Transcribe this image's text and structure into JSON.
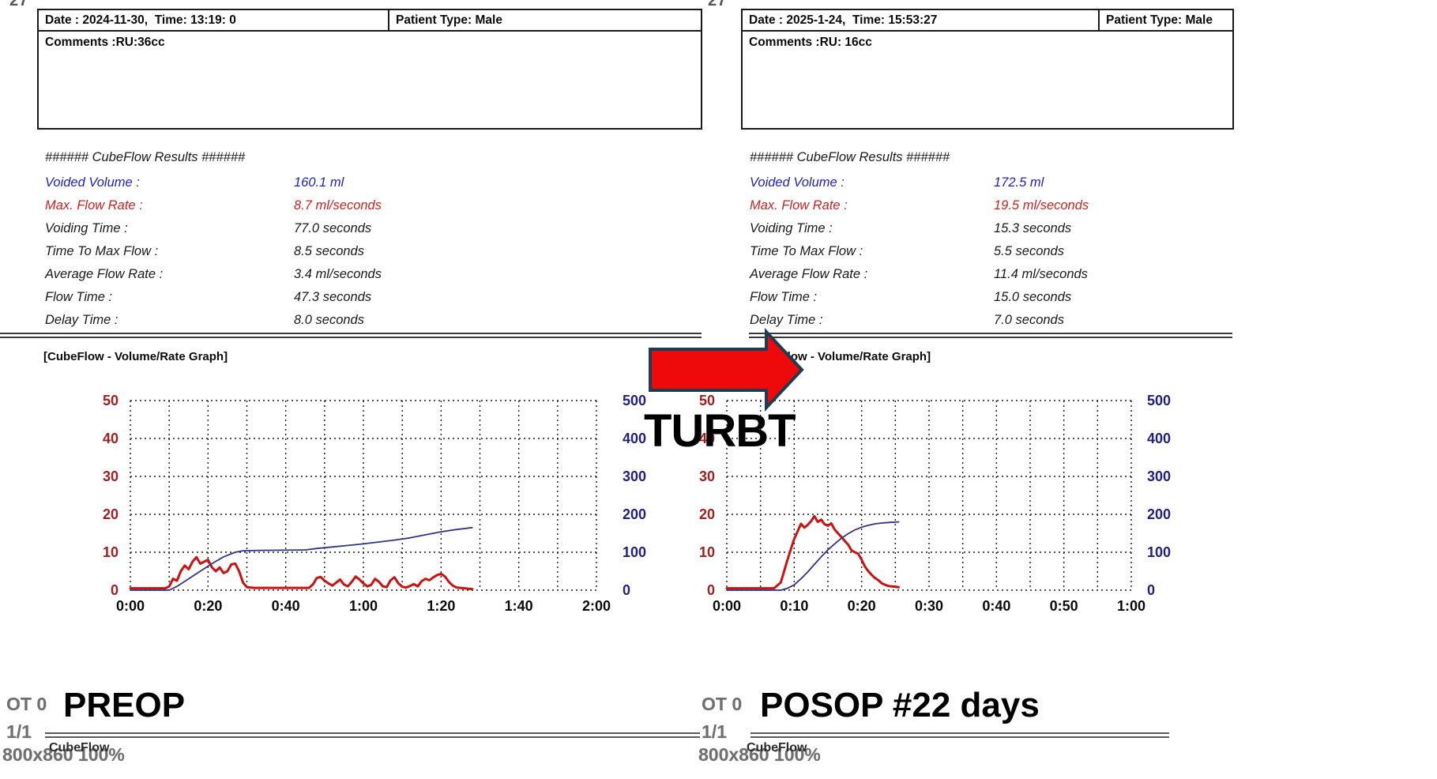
{
  "annotations": {
    "arrow_label": "TURBT",
    "left_caption": "PREOP",
    "right_caption": "POSOP #22 days",
    "arrow_fill": "#ee0a0a",
    "arrow_outline": "#1d3e52"
  },
  "panels": [
    {
      "id": "preop",
      "page_corner": "27",
      "header": {
        "date_line": "Date : 2024-11-30,  Time: 13:19: 0",
        "patient_type": "Patient Type: Male",
        "comments": "Comments :RU:36cc"
      },
      "results": {
        "title": "###### CubeFlow Results ######",
        "rows": [
          {
            "label": "Voided Volume :",
            "value": "160.1 ml",
            "color": "#2222bb"
          },
          {
            "label": "Max. Flow Rate :",
            "value": "8.7 ml/seconds",
            "color": "#cc2222"
          },
          {
            "label": "Voiding Time :",
            "value": "77.0 seconds",
            "color": "#1a1a1a"
          },
          {
            "label": "Time To Max Flow :",
            "value": "8.5 seconds",
            "color": "#1a1a1a"
          },
          {
            "label": "Average Flow Rate :",
            "value": "3.4 ml/seconds",
            "color": "#1a1a1a"
          },
          {
            "label": "Flow Time :",
            "value": "47.3 seconds",
            "color": "#1a1a1a"
          },
          {
            "label": "Delay Time :",
            "value": "8.0 seconds",
            "color": "#1a1a1a"
          }
        ]
      },
      "graph_title": "[CubeFlow - Volume/Rate Graph]",
      "status": {
        "ot": "OT 0",
        "page": "1/1",
        "zoom": "800x860 100%",
        "brand": "CubeFlow"
      }
    },
    {
      "id": "posop",
      "page_corner": "27",
      "header": {
        "date_line": "Date : 2025-1-24,  Time: 15:53:27",
        "patient_type": "Patient Type: Male",
        "comments": "Comments :RU: 16cc"
      },
      "results": {
        "title": "###### CubeFlow Results ######",
        "rows": [
          {
            "label": "Voided Volume :",
            "value": "172.5 ml",
            "color": "#2222bb"
          },
          {
            "label": "Max. Flow Rate :",
            "value": "19.5 ml/seconds",
            "color": "#cc2222"
          },
          {
            "label": "Voiding Time :",
            "value": "15.3 seconds",
            "color": "#1a1a1a"
          },
          {
            "label": "Time To Max Flow :",
            "value": "5.5 seconds",
            "color": "#1a1a1a"
          },
          {
            "label": "Average Flow Rate :",
            "value": "11.4 ml/seconds",
            "color": "#1a1a1a"
          },
          {
            "label": "Flow Time :",
            "value": "15.0 seconds",
            "color": "#1a1a1a"
          },
          {
            "label": "Delay Time :",
            "value": "7.0 seconds",
            "color": "#1a1a1a"
          }
        ]
      },
      "graph_title": "[CubeFlow - Volume/Rate Graph]",
      "status": {
        "ot": "OT 0",
        "page": "1/1",
        "zoom": "800x860 100%",
        "brand": "CubeFlow"
      }
    }
  ],
  "chart_data": [
    {
      "type": "line",
      "title": "[CubeFlow - Volume/Rate Graph] (PREOP)",
      "x_ticks": [
        "0:00",
        "0:20",
        "0:40",
        "1:00",
        "1:20",
        "1:40",
        "2:00"
      ],
      "x_range_seconds": [
        0,
        120
      ],
      "flow_axis": {
        "ticks": [
          50,
          40,
          30,
          20,
          10,
          0
        ],
        "range": [
          0,
          50
        ],
        "color": "#a02020"
      },
      "volume_axis": {
        "ticks": [
          500,
          400,
          300,
          200,
          100,
          0
        ],
        "range": [
          0,
          500
        ],
        "color": "#20207f"
      },
      "grid": {
        "cols": 12,
        "rows": 5,
        "style": "dashed"
      },
      "series": [
        {
          "name": "Flow Rate (ml/s)",
          "axis": "flow",
          "color": "#cc1111",
          "width": 3,
          "points": [
            [
              0,
              0.5
            ],
            [
              9,
              0.5
            ],
            [
              10,
              1
            ],
            [
              11,
              3
            ],
            [
              12,
              2.5
            ],
            [
              13,
              5
            ],
            [
              14,
              6.5
            ],
            [
              15,
              5.5
            ],
            [
              16,
              7.5
            ],
            [
              17,
              8.7
            ],
            [
              18,
              7
            ],
            [
              19,
              7.5
            ],
            [
              20,
              8
            ],
            [
              21,
              6
            ],
            [
              22,
              5
            ],
            [
              23,
              6
            ],
            [
              24,
              4.5
            ],
            [
              25,
              5
            ],
            [
              26,
              6.8
            ],
            [
              27,
              7
            ],
            [
              28,
              5
            ],
            [
              29,
              2
            ],
            [
              30,
              0.8
            ],
            [
              32,
              0.6
            ],
            [
              46,
              0.6
            ],
            [
              47,
              1.5
            ],
            [
              48,
              3.2
            ],
            [
              49,
              3.5
            ],
            [
              50,
              2.5
            ],
            [
              51,
              1.8
            ],
            [
              52,
              1.2
            ],
            [
              53,
              2
            ],
            [
              54,
              2.8
            ],
            [
              55,
              1.5
            ],
            [
              56,
              1
            ],
            [
              57,
              2.2
            ],
            [
              58,
              3.6
            ],
            [
              59,
              2.8
            ],
            [
              60,
              1.8
            ],
            [
              61,
              1
            ],
            [
              62,
              1.4
            ],
            [
              63,
              3
            ],
            [
              64,
              2.2
            ],
            [
              65,
              1
            ],
            [
              66,
              0.8
            ],
            [
              67,
              2.6
            ],
            [
              68,
              3.4
            ],
            [
              69,
              1.8
            ],
            [
              70,
              0.9
            ],
            [
              71,
              0.7
            ],
            [
              72,
              1.1
            ],
            [
              73,
              1.6
            ],
            [
              74,
              1
            ],
            [
              75,
              2.4
            ],
            [
              76,
              3
            ],
            [
              77,
              2.6
            ],
            [
              78,
              3.4
            ],
            [
              79,
              4
            ],
            [
              80,
              4.3
            ],
            [
              81,
              3.6
            ],
            [
              82,
              2.2
            ],
            [
              83,
              1.2
            ],
            [
              84,
              0.7
            ],
            [
              86,
              0.5
            ],
            [
              88,
              0.3
            ]
          ]
        },
        {
          "name": "Voided Volume (ml)",
          "axis": "volume",
          "color": "#333388",
          "width": 1.8,
          "points": [
            [
              0,
              0
            ],
            [
              10,
              0
            ],
            [
              12,
              10
            ],
            [
              15,
              30
            ],
            [
              18,
              50
            ],
            [
              21,
              70
            ],
            [
              24,
              88
            ],
            [
              27,
              100
            ],
            [
              29,
              104
            ],
            [
              33,
              105
            ],
            [
              45,
              106
            ],
            [
              48,
              110
            ],
            [
              52,
              114
            ],
            [
              56,
              118
            ],
            [
              60,
              122
            ],
            [
              64,
              127
            ],
            [
              68,
              132
            ],
            [
              72,
              138
            ],
            [
              76,
              146
            ],
            [
              80,
              154
            ],
            [
              84,
              160
            ],
            [
              88,
              165
            ]
          ]
        }
      ]
    },
    {
      "type": "line",
      "title": "[CubeFlow - Volume/Rate Graph] (POSOP)",
      "x_ticks": [
        "0:00",
        "0:10",
        "0:20",
        "0:30",
        "0:40",
        "0:50",
        "1:00"
      ],
      "x_range_seconds": [
        0,
        60
      ],
      "flow_axis": {
        "ticks": [
          50,
          40,
          30,
          20,
          10,
          0
        ],
        "range": [
          0,
          50
        ],
        "color": "#a02020"
      },
      "volume_axis": {
        "ticks": [
          500,
          400,
          300,
          200,
          100,
          0
        ],
        "range": [
          0,
          500
        ],
        "color": "#20207f"
      },
      "grid": {
        "cols": 12,
        "rows": 5,
        "style": "dashed"
      },
      "series": [
        {
          "name": "Flow Rate (ml/s)",
          "axis": "flow",
          "color": "#cc1111",
          "width": 3,
          "points": [
            [
              0,
              0.5
            ],
            [
              7,
              0.5
            ],
            [
              8,
              2
            ],
            [
              9,
              8
            ],
            [
              10,
              13.5
            ],
            [
              10.5,
              15.5
            ],
            [
              11,
              17.5
            ],
            [
              11.5,
              16.5
            ],
            [
              12,
              17.2
            ],
            [
              12.5,
              18.2
            ],
            [
              13,
              19.5
            ],
            [
              13.5,
              18
            ],
            [
              14,
              18.6
            ],
            [
              14.5,
              17.4
            ],
            [
              15,
              17
            ],
            [
              15.5,
              17.6
            ],
            [
              16,
              16
            ],
            [
              16.5,
              15
            ],
            [
              17,
              14
            ],
            [
              17.5,
              13
            ],
            [
              18,
              12
            ],
            [
              18.5,
              10.5
            ],
            [
              19,
              10
            ],
            [
              19.5,
              9.6
            ],
            [
              20,
              8
            ],
            [
              20.5,
              6.2
            ],
            [
              21,
              5
            ],
            [
              21.5,
              4
            ],
            [
              22,
              3.2
            ],
            [
              22.5,
              2.6
            ],
            [
              23,
              1.8
            ],
            [
              23.5,
              1.4
            ],
            [
              24,
              1.1
            ],
            [
              25,
              0.9
            ],
            [
              25.5,
              0.8
            ]
          ]
        },
        {
          "name": "Voided Volume (ml)",
          "axis": "volume",
          "color": "#333388",
          "width": 1.8,
          "points": [
            [
              0,
              0
            ],
            [
              8,
              0
            ],
            [
              9,
              5
            ],
            [
              10,
              14
            ],
            [
              11,
              30
            ],
            [
              12,
              48
            ],
            [
              13,
              68
            ],
            [
              14,
              88
            ],
            [
              15,
              106
            ],
            [
              16,
              122
            ],
            [
              17,
              137
            ],
            [
              18,
              149
            ],
            [
              19,
              159
            ],
            [
              20,
              166
            ],
            [
              21,
              171
            ],
            [
              22,
              175
            ],
            [
              23,
              177
            ],
            [
              24,
              178.5
            ],
            [
              25,
              179.5
            ],
            [
              25.5,
              180
            ]
          ]
        }
      ]
    }
  ]
}
